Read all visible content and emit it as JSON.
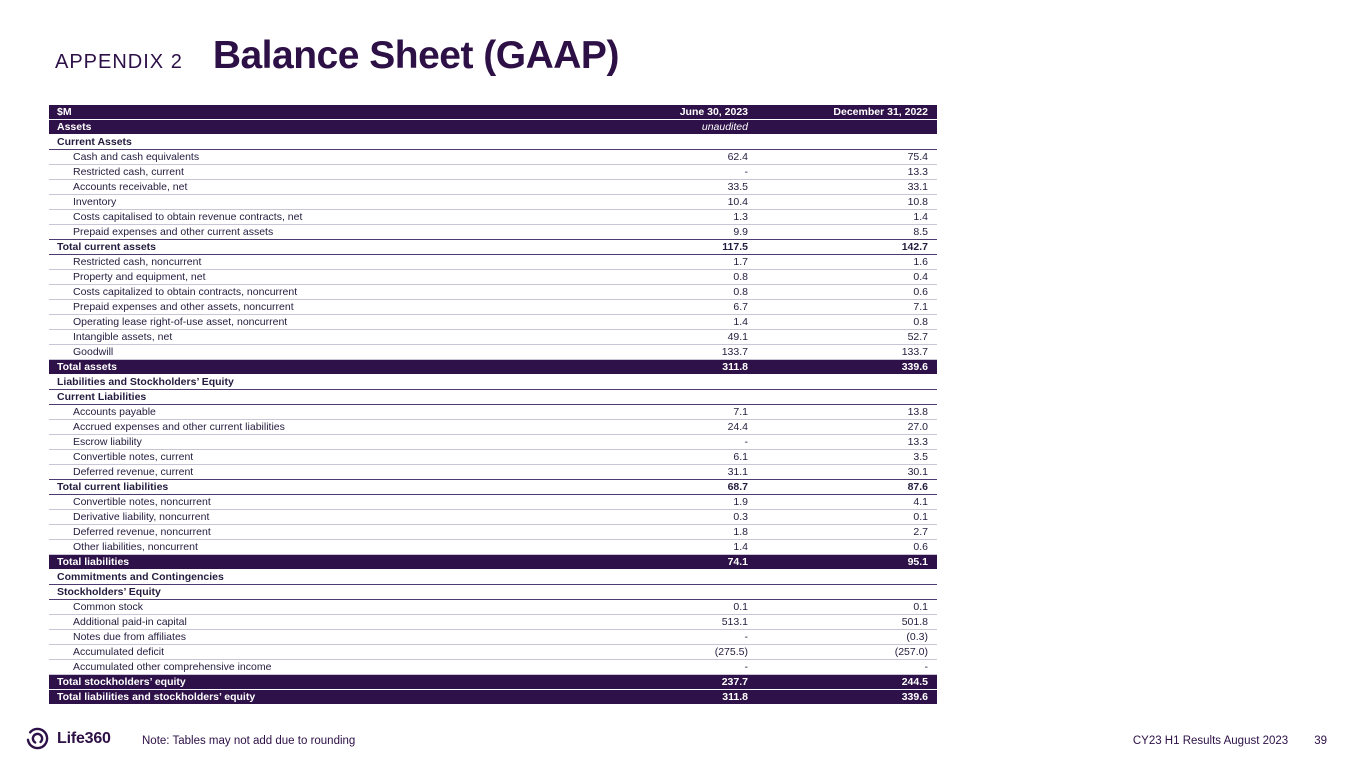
{
  "slide": {
    "appendix_label": "APPENDIX 2",
    "title": "Balance Sheet (GAAP)"
  },
  "colors": {
    "brand_purple": "#2e1148",
    "title_purple": "#2d1046",
    "light_border": "#cac5d6",
    "dark_border": "#4e3a70"
  },
  "table": {
    "rows": [
      {
        "type": "header",
        "label": "$M",
        "v1": "June 30, 2023",
        "v2": "December 31, 2022"
      },
      {
        "type": "subheader",
        "label": "Assets",
        "v1": "unaudited",
        "v2": ""
      },
      {
        "type": "section",
        "label": "Current Assets",
        "v1": "",
        "v2": ""
      },
      {
        "type": "item",
        "label": "Cash and cash equivalents",
        "v1": "62.4",
        "v2": "75.4"
      },
      {
        "type": "item",
        "label": "Restricted cash, current",
        "v1": "-",
        "v2": "13.3"
      },
      {
        "type": "item",
        "label": "Accounts receivable, net",
        "v1": "33.5",
        "v2": "33.1"
      },
      {
        "type": "item",
        "label": "Inventory",
        "v1": "10.4",
        "v2": "10.8"
      },
      {
        "type": "item",
        "label": "Costs capitalised to obtain revenue contracts, net",
        "v1": "1.3",
        "v2": "1.4"
      },
      {
        "type": "item",
        "label": "Prepaid expenses and other current assets",
        "v1": "9.9",
        "v2": "8.5"
      },
      {
        "type": "total",
        "label": "Total current assets",
        "v1": "117.5",
        "v2": "142.7"
      },
      {
        "type": "item",
        "label": "Restricted cash, noncurrent",
        "v1": "1.7",
        "v2": "1.6"
      },
      {
        "type": "item",
        "label": "Property and equipment, net",
        "v1": "0.8",
        "v2": "0.4"
      },
      {
        "type": "item",
        "label": "Costs capitalized to obtain contracts, noncurrent",
        "v1": "0.8",
        "v2": "0.6"
      },
      {
        "type": "item",
        "label": "Prepaid expenses and other assets, noncurrent",
        "v1": "6.7",
        "v2": "7.1"
      },
      {
        "type": "item",
        "label": "Operating lease right-of-use asset, noncurrent",
        "v1": "1.4",
        "v2": "0.8"
      },
      {
        "type": "item",
        "label": "Intangible assets, net",
        "v1": "49.1",
        "v2": "52.7"
      },
      {
        "type": "item",
        "label": "Goodwill",
        "v1": "133.7",
        "v2": "133.7"
      },
      {
        "type": "darktotal",
        "label": "Total assets",
        "v1": "311.8",
        "v2": "339.6"
      },
      {
        "type": "section",
        "label": "Liabilities and Stockholders’ Equity",
        "v1": "",
        "v2": ""
      },
      {
        "type": "section",
        "label": "Current Liabilities",
        "v1": "",
        "v2": ""
      },
      {
        "type": "item",
        "label": "Accounts payable",
        "v1": "7.1",
        "v2": "13.8"
      },
      {
        "type": "item",
        "label": "Accrued expenses and other current liabilities",
        "v1": "24.4",
        "v2": "27.0"
      },
      {
        "type": "item",
        "label": "Escrow liability",
        "v1": "-",
        "v2": "13.3"
      },
      {
        "type": "item",
        "label": "Convertible notes, current",
        "v1": "6.1",
        "v2": "3.5"
      },
      {
        "type": "item",
        "label": "Deferred revenue, current",
        "v1": "31.1",
        "v2": "30.1"
      },
      {
        "type": "total",
        "label": "Total current liabilities",
        "v1": "68.7",
        "v2": "87.6"
      },
      {
        "type": "item",
        "label": "Convertible notes, noncurrent",
        "v1": "1.9",
        "v2": "4.1"
      },
      {
        "type": "item",
        "label": "Derivative liability, noncurrent",
        "v1": "0.3",
        "v2": "0.1"
      },
      {
        "type": "item",
        "label": "Deferred revenue, noncurrent",
        "v1": "1.8",
        "v2": "2.7"
      },
      {
        "type": "item",
        "label": "Other liabilities, noncurrent",
        "v1": "1.4",
        "v2": "0.6"
      },
      {
        "type": "darktotal",
        "label": "Total liabilities",
        "v1": "74.1",
        "v2": "95.1"
      },
      {
        "type": "section",
        "label": "Commitments and Contingencies",
        "v1": "",
        "v2": ""
      },
      {
        "type": "section",
        "label": "Stockholders’ Equity",
        "v1": "",
        "v2": ""
      },
      {
        "type": "item",
        "label": "Common stock",
        "v1": "0.1",
        "v2": "0.1"
      },
      {
        "type": "item",
        "label": "Additional paid-in capital",
        "v1": "513.1",
        "v2": "501.8"
      },
      {
        "type": "item",
        "label": "Notes due from affiliates",
        "v1": "-",
        "v2": "(0.3)"
      },
      {
        "type": "item",
        "label": "Accumulated deficit",
        "v1": "(275.5)",
        "v2": "(257.0)"
      },
      {
        "type": "item",
        "label": "Accumulated other comprehensive income",
        "v1": "-",
        "v2": "-"
      },
      {
        "type": "darktotal",
        "label": "Total stockholders’ equity",
        "v1": "237.7",
        "v2": "244.5"
      },
      {
        "type": "darktotal",
        "label": "Total liabilities and stockholders’ equity",
        "v1": "311.8",
        "v2": "339.6"
      }
    ]
  },
  "footer": {
    "brand": "Life360",
    "note": "Note: Tables may not add due to rounding",
    "deck_label": "CY23 H1 Results August 2023",
    "page_number": "39"
  }
}
